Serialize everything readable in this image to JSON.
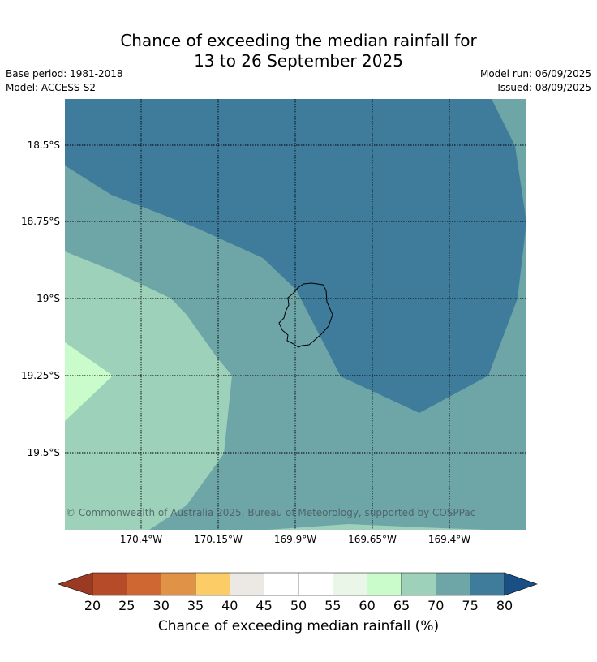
{
  "header": {
    "title_line1": "Chance of exceeding the median rainfall for",
    "title_line2": "13 to 26 September 2025",
    "base_period": "Base period: 1981-2018",
    "model": "Model: ACCESS-S2",
    "model_run": "Model run: 06/09/2025",
    "issued": "Issued: 08/09/2025"
  },
  "map": {
    "copyright": "© Commonwealth of Australia 2025, Bureau of Meteorology, supported by COSPPac",
    "lat_labels": [
      "18.5°S",
      "18.75°S",
      "19°S",
      "19.25°S",
      "19.5°S"
    ],
    "lon_labels": [
      "170.4°W",
      "170.15°W",
      "169.9°W",
      "169.65°W",
      "169.4°W"
    ]
  },
  "colorbar": {
    "ticks": [
      "20",
      "25",
      "30",
      "35",
      "40",
      "45",
      "50",
      "55",
      "60",
      "65",
      "70",
      "75",
      "80"
    ],
    "label": "Chance of exceeding median rainfall (%)",
    "colors": {
      "below_20": "#9a3a22",
      "20_25": "#b54b28",
      "25_30": "#cf6733",
      "30_35": "#e09347",
      "35_40": "#fccd67",
      "40_45": "#ece8e3",
      "45_50": "#ffffff",
      "50_55": "#ffffff",
      "55_60": "#eaf6e8",
      "60_65": "#c9fbcb",
      "65_70": "#9dd1ba",
      "70_75": "#6ea5a7",
      "75_80": "#3f7b9a",
      "above_80": "#1a4f86"
    }
  }
}
